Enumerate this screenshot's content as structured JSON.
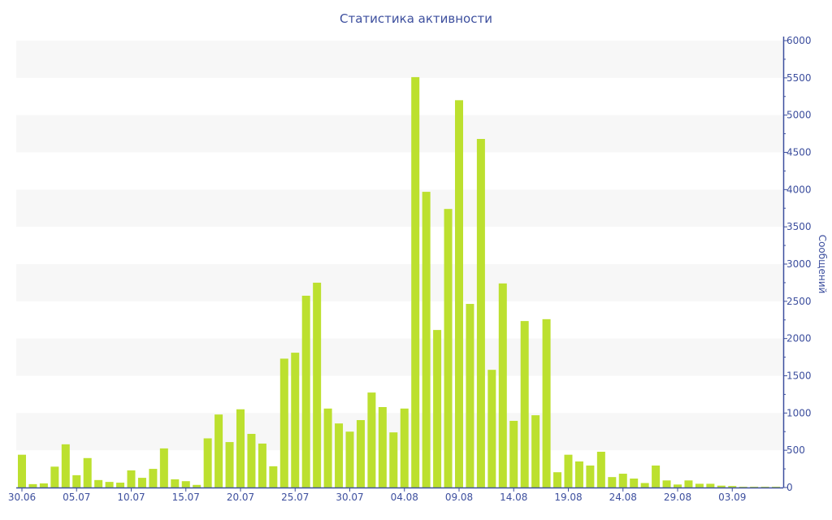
{
  "chart_data": {
    "type": "bar",
    "title": "Статистика активности",
    "ylabel": "Сообщений",
    "xlabel": "",
    "ylim": [
      0,
      6000
    ],
    "y_ticks": [
      0,
      500,
      1000,
      1500,
      2000,
      2500,
      3000,
      3500,
      4000,
      4500,
      5000,
      5500,
      6000
    ],
    "y_axis_side": "right",
    "grid": "alternating horizontal bands",
    "bar_color": "#bce02f",
    "axis_color": "#3d4f9e",
    "band_color": "#f7f7f7",
    "x_tick_labels": [
      "30.06",
      "05.07",
      "10.07",
      "15.07",
      "20.07",
      "25.07",
      "30.07",
      "04.08",
      "09.08",
      "14.08",
      "19.08",
      "24.08",
      "29.08",
      "03.09"
    ],
    "categories": [
      "30.06",
      "01.07",
      "02.07",
      "03.07",
      "04.07",
      "05.07",
      "06.07",
      "07.07",
      "08.07",
      "09.07",
      "10.07",
      "11.07",
      "12.07",
      "13.07",
      "14.07",
      "15.07",
      "16.07",
      "17.07",
      "18.07",
      "19.07",
      "20.07",
      "21.07",
      "22.07",
      "23.07",
      "24.07",
      "25.07",
      "26.07",
      "27.07",
      "28.07",
      "29.07",
      "30.07",
      "31.07",
      "01.08",
      "02.08",
      "03.08",
      "04.08",
      "05.08",
      "06.08",
      "07.08",
      "08.08",
      "09.08",
      "10.08",
      "11.08",
      "12.08",
      "13.08",
      "14.08",
      "15.08",
      "16.08",
      "17.08",
      "18.08",
      "19.08",
      "20.08",
      "21.08",
      "22.08",
      "23.08",
      "24.08",
      "25.08",
      "26.08",
      "27.08",
      "28.08",
      "29.08",
      "30.08",
      "31.08",
      "01.09",
      "02.09",
      "03.09",
      "04.09",
      "05.09",
      "06.09",
      "07.09"
    ],
    "values": [
      440,
      45,
      55,
      280,
      580,
      165,
      395,
      100,
      75,
      65,
      230,
      130,
      250,
      525,
      110,
      85,
      35,
      660,
      980,
      610,
      1050,
      720,
      590,
      285,
      1730,
      1810,
      2575,
      2750,
      1060,
      860,
      750,
      905,
      1275,
      1080,
      740,
      1060,
      5510,
      3970,
      2115,
      3740,
      5200,
      2465,
      4680,
      1580,
      2740,
      895,
      2235,
      970,
      2260,
      205,
      440,
      350,
      295,
      480,
      140,
      185,
      120,
      60,
      295,
      95,
      40,
      95,
      50,
      50,
      25,
      20,
      10,
      10,
      10,
      10
    ]
  }
}
